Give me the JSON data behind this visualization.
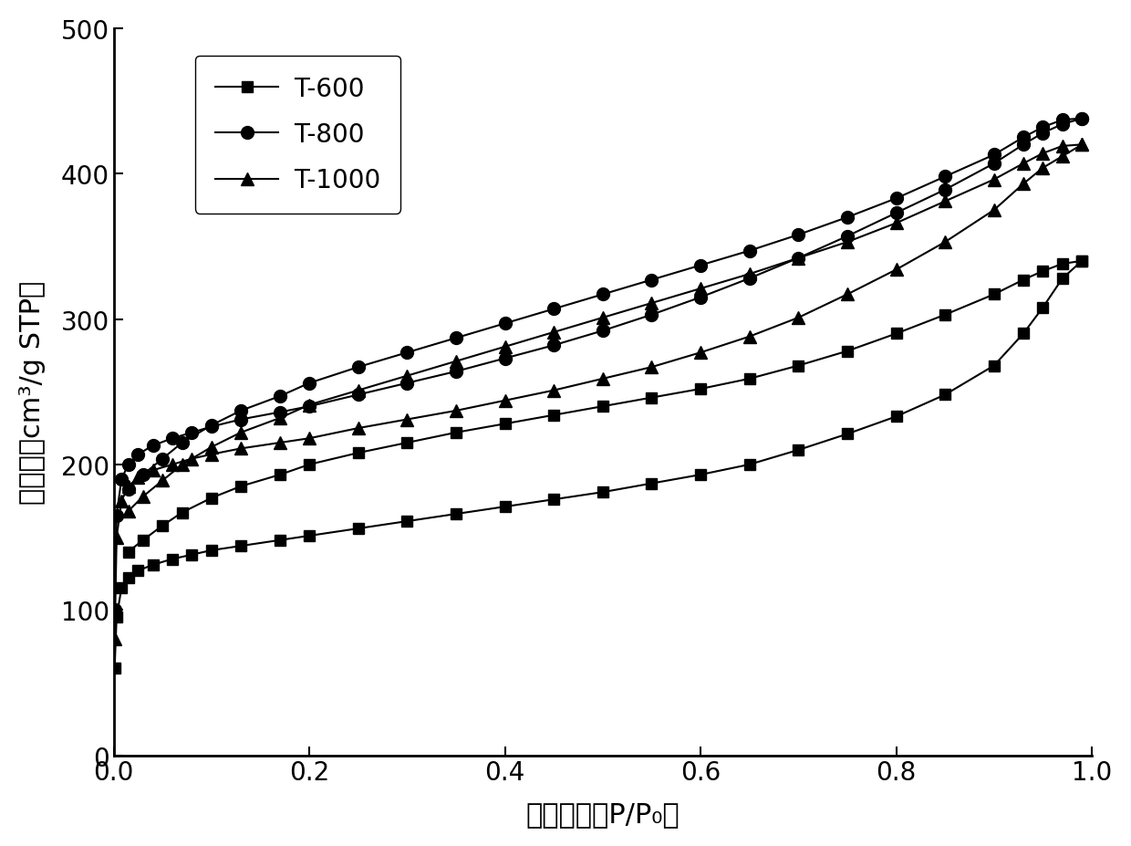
{
  "xlabel": "相对压力（P/P₀）",
  "ylabel": "吸附量（cm³/g STP）",
  "xlim": [
    0.0,
    1.0
  ],
  "ylim": [
    0,
    500
  ],
  "yticks": [
    0,
    100,
    200,
    300,
    400,
    500
  ],
  "xticks": [
    0.0,
    0.2,
    0.4,
    0.6,
    0.8,
    1.0
  ],
  "color": "#000000",
  "T600_ads_x": [
    0.001,
    0.003,
    0.008,
    0.015,
    0.025,
    0.04,
    0.06,
    0.08,
    0.1,
    0.13,
    0.17,
    0.2,
    0.25,
    0.3,
    0.35,
    0.4,
    0.45,
    0.5,
    0.55,
    0.6,
    0.65,
    0.7,
    0.75,
    0.8,
    0.85,
    0.9,
    0.93,
    0.95,
    0.97,
    0.99
  ],
  "T600_ads_y": [
    60,
    95,
    115,
    122,
    127,
    131,
    135,
    138,
    141,
    144,
    148,
    151,
    156,
    161,
    166,
    171,
    176,
    181,
    187,
    193,
    200,
    210,
    221,
    233,
    248,
    268,
    290,
    308,
    328,
    340
  ],
  "T600_des_x": [
    0.99,
    0.97,
    0.95,
    0.93,
    0.9,
    0.85,
    0.8,
    0.75,
    0.7,
    0.65,
    0.6,
    0.55,
    0.5,
    0.45,
    0.4,
    0.35,
    0.3,
    0.25,
    0.2,
    0.17,
    0.13,
    0.1,
    0.07,
    0.05,
    0.03,
    0.015
  ],
  "T600_des_y": [
    340,
    338,
    333,
    327,
    317,
    303,
    290,
    278,
    268,
    259,
    252,
    246,
    240,
    234,
    228,
    222,
    215,
    208,
    200,
    193,
    185,
    177,
    167,
    158,
    148,
    140
  ],
  "T800_ads_x": [
    0.001,
    0.003,
    0.008,
    0.015,
    0.025,
    0.04,
    0.06,
    0.08,
    0.1,
    0.13,
    0.17,
    0.2,
    0.25,
    0.3,
    0.35,
    0.4,
    0.45,
    0.5,
    0.55,
    0.6,
    0.65,
    0.7,
    0.75,
    0.8,
    0.85,
    0.9,
    0.93,
    0.95,
    0.97,
    0.99
  ],
  "T800_ads_y": [
    100,
    165,
    190,
    200,
    207,
    213,
    218,
    222,
    226,
    231,
    236,
    240,
    248,
    256,
    264,
    273,
    282,
    292,
    303,
    315,
    328,
    342,
    357,
    373,
    389,
    407,
    420,
    428,
    434,
    438
  ],
  "T800_des_x": [
    0.99,
    0.97,
    0.95,
    0.93,
    0.9,
    0.85,
    0.8,
    0.75,
    0.7,
    0.65,
    0.6,
    0.55,
    0.5,
    0.45,
    0.4,
    0.35,
    0.3,
    0.25,
    0.2,
    0.17,
    0.13,
    0.1,
    0.07,
    0.05,
    0.03,
    0.015
  ],
  "T800_des_y": [
    438,
    437,
    432,
    425,
    413,
    398,
    383,
    370,
    358,
    347,
    337,
    327,
    317,
    307,
    297,
    287,
    277,
    267,
    256,
    247,
    237,
    227,
    215,
    204,
    193,
    183
  ],
  "T1000_ads_x": [
    0.001,
    0.003,
    0.008,
    0.015,
    0.025,
    0.04,
    0.06,
    0.08,
    0.1,
    0.13,
    0.17,
    0.2,
    0.25,
    0.3,
    0.35,
    0.4,
    0.45,
    0.5,
    0.55,
    0.6,
    0.65,
    0.7,
    0.75,
    0.8,
    0.85,
    0.9,
    0.93,
    0.95,
    0.97,
    0.99
  ],
  "T1000_ads_y": [
    80,
    150,
    175,
    185,
    191,
    196,
    200,
    204,
    207,
    211,
    215,
    218,
    225,
    231,
    237,
    244,
    251,
    259,
    267,
    277,
    288,
    301,
    317,
    334,
    353,
    375,
    393,
    404,
    412,
    420
  ],
  "T1000_des_x": [
    0.99,
    0.97,
    0.95,
    0.93,
    0.9,
    0.85,
    0.8,
    0.75,
    0.7,
    0.65,
    0.6,
    0.55,
    0.5,
    0.45,
    0.4,
    0.35,
    0.3,
    0.25,
    0.2,
    0.17,
    0.13,
    0.1,
    0.07,
    0.05,
    0.03,
    0.015
  ],
  "T1000_des_y": [
    420,
    419,
    414,
    407,
    396,
    381,
    366,
    353,
    342,
    331,
    321,
    311,
    301,
    291,
    281,
    271,
    261,
    251,
    241,
    232,
    222,
    212,
    200,
    189,
    178,
    168
  ]
}
